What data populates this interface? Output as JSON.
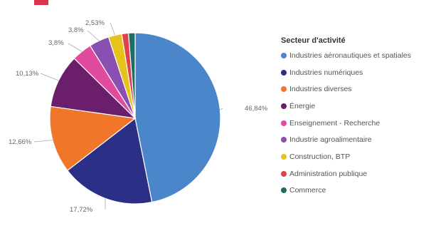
{
  "chart_data": {
    "type": "pie",
    "legend_title": "Secteur d'activité",
    "legend_position": "right",
    "slices": [
      {
        "label": "Industries aéronautiques et spatiales",
        "value": 46.84,
        "value_label": "46,84%",
        "color": "#4a86c9"
      },
      {
        "label": "Industries numériques",
        "value": 17.72,
        "value_label": "17,72%",
        "color": "#2b2f86"
      },
      {
        "label": "Industries diverses",
        "value": 12.66,
        "value_label": "12,66%",
        "color": "#f0762a"
      },
      {
        "label": "Énergie",
        "value": 10.13,
        "value_label": "10,13%",
        "color": "#6b1f6b"
      },
      {
        "label": "Enseignement - Recherche",
        "value": 3.8,
        "value_label": "3,8%",
        "color": "#e04b9d"
      },
      {
        "label": "Industrie agroalimentaire",
        "value": 3.8,
        "value_label": "3,8%",
        "color": "#8a4fb0"
      },
      {
        "label": "Construction, BTP",
        "value": 2.53,
        "value_label": "2,53%",
        "color": "#e6c21a"
      },
      {
        "label": "Administration publique",
        "value": 1.27,
        "value_label": "",
        "color": "#e0424c"
      },
      {
        "label": "Commerce",
        "value": 1.25,
        "value_label": "",
        "color": "#1f6b66"
      }
    ]
  },
  "colors": {
    "accent_bar": "#d9334f"
  }
}
